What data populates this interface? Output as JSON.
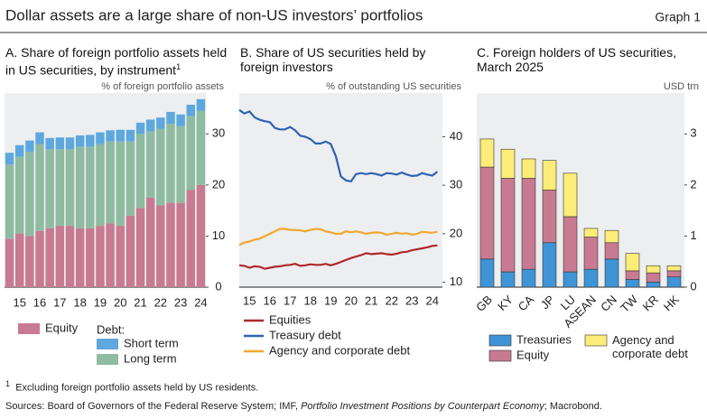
{
  "title": "Dollar assets are a large share of non-US investors’ portfolios",
  "graph_label": "Graph 1",
  "chart_data": [
    {
      "type": "bar",
      "stacked": true,
      "title": "A. Share of foreign portfolio assets held in US securities, by instrument",
      "title_note": "1",
      "y_label": "% of foreign portfolio assets",
      "categories": [
        null,
        "15",
        null,
        "16",
        null,
        "17",
        null,
        "18",
        null,
        "19",
        null,
        "20",
        null,
        "21",
        null,
        "22",
        null,
        "23",
        null,
        "24"
      ],
      "series": [
        {
          "name": "Equity",
          "color": "#c87a92",
          "values": [
            9.5,
            10.5,
            10,
            11,
            11.5,
            12,
            12,
            11.5,
            11.5,
            12,
            12.5,
            12,
            14,
            15.5,
            17.5,
            16,
            16.5,
            16.5,
            19,
            20
          ]
        },
        {
          "name": "Short term",
          "color": "#5ea8de",
          "values": [
            2.3,
            2.3,
            2.2,
            2.3,
            2.2,
            2.3,
            2.3,
            2.2,
            2.3,
            2.3,
            2.2,
            2.3,
            2.3,
            2.2,
            2.3,
            2.2,
            2.3,
            2.3,
            2.2,
            2.3
          ]
        },
        {
          "name": "Long term",
          "color": "#8fbba1",
          "values": [
            14.5,
            15,
            16.5,
            17,
            15.5,
            15,
            15,
            16,
            16,
            16,
            16,
            16.5,
            14.5,
            14.5,
            13,
            15,
            15.5,
            15,
            14.5,
            14.5
          ]
        }
      ],
      "legend_group": "Debt:",
      "ylim": [
        0,
        38
      ],
      "yticks": [
        0,
        10,
        20,
        30
      ]
    },
    {
      "type": "line",
      "title": "B. Share of US securities held by foreign investors",
      "y_label": "% of outstanding US securities",
      "x": [
        15,
        15.25,
        15.5,
        15.75,
        16,
        16.25,
        16.5,
        16.75,
        17,
        17.25,
        17.5,
        17.75,
        18,
        18.25,
        18.5,
        18.75,
        19,
        19.25,
        19.5,
        19.75,
        20,
        20.25,
        20.5,
        20.75,
        21,
        21.25,
        21.5,
        21.75,
        22,
        22.25,
        22.5,
        22.75,
        23,
        23.25,
        23.5,
        23.75,
        24,
        24.25,
        24.5,
        24.75
      ],
      "series": [
        {
          "name": "Equities",
          "color": "#b0282c",
          "values": [
            13.5,
            13.4,
            13,
            13.3,
            13.2,
            12.8,
            13,
            13.2,
            13.3,
            13.5,
            13.6,
            13.8,
            13.4,
            13.5,
            13.7,
            13.6,
            13.6,
            13.8,
            13.5,
            13.8,
            14.2,
            14.6,
            15,
            15.3,
            15.6,
            16,
            15.8,
            15.9,
            16,
            15.8,
            15.7,
            15.9,
            16.2,
            16.3,
            16.6,
            16.8,
            17,
            17.2,
            17.5,
            17.6
          ]
        },
        {
          "name": "Treasury debt",
          "color": "#2e64b2",
          "values": [
            45.5,
            44.8,
            45.2,
            44,
            43.5,
            43.2,
            43,
            41.8,
            41.5,
            41.5,
            42,
            41.3,
            40.2,
            40,
            39.5,
            38.6,
            38.6,
            39,
            38.5,
            36,
            31.8,
            31,
            30.8,
            32.3,
            32.5,
            32.3,
            32.5,
            32.3,
            32,
            32.5,
            32.4,
            32.2,
            32.6,
            32.2,
            31.9,
            32,
            32.5,
            32.2,
            32,
            32.8
          ]
        },
        {
          "name": "Agency and corporate debt",
          "color": "#f0a82e",
          "values": [
            17.7,
            18.2,
            18.4,
            18.8,
            19,
            19.5,
            20,
            20.5,
            21,
            21,
            20.8,
            20.8,
            20.7,
            20.5,
            20.8,
            21,
            20.9,
            20.5,
            20.3,
            20,
            20,
            20.5,
            20.3,
            20.5,
            20.3,
            20,
            20.2,
            20.3,
            20.2,
            19.8,
            20,
            20.2,
            20,
            20.1,
            19.8,
            20,
            20.4,
            20.3,
            20.2,
            20.4
          ]
        }
      ],
      "xlim": [
        15,
        25
      ],
      "xticks": [
        {
          "value": 15.5,
          "label": "15"
        },
        {
          "value": 16.5,
          "label": "16"
        },
        {
          "value": 17.5,
          "label": "17"
        },
        {
          "value": 18.5,
          "label": "18"
        },
        {
          "value": 19.5,
          "label": "19"
        },
        {
          "value": 20.5,
          "label": "20"
        },
        {
          "value": 21.5,
          "label": "21"
        },
        {
          "value": 22.5,
          "label": "22"
        },
        {
          "value": 23.5,
          "label": "23"
        },
        {
          "value": 24.5,
          "label": "24"
        }
      ],
      "ylim": [
        9,
        49
      ],
      "yticks": [
        10,
        20,
        30,
        40
      ]
    },
    {
      "type": "bar",
      "stacked": true,
      "title": "C. Foreign holders of US securities, March 2025",
      "y_label": "USD trn",
      "categories": [
        "GB",
        "KY",
        "CA",
        "JP",
        "LU",
        "ASEAN",
        "CN",
        "TW",
        "KR",
        "HK"
      ],
      "series": [
        {
          "name": "Treasuries",
          "color": "#3f94d5",
          "values": [
            0.55,
            0.3,
            0.35,
            0.87,
            0.3,
            0.35,
            0.55,
            0.15,
            0.1,
            0.2
          ]
        },
        {
          "name": "Equity",
          "color": "#c87a92",
          "values": [
            1.8,
            1.83,
            1.78,
            1.03,
            1.08,
            0.63,
            0.32,
            0.17,
            0.18,
            0.12
          ]
        },
        {
          "name": "Agency and corporate debt",
          "color": "#fcec78",
          "values": [
            0.55,
            0.57,
            0.38,
            0.58,
            0.85,
            0.17,
            0.24,
            0.34,
            0.14,
            0.1
          ]
        }
      ],
      "ylim": [
        0,
        3.8
      ],
      "yticks": [
        0,
        1,
        2,
        3
      ]
    }
  ],
  "footnote": {
    "marker": "1",
    "text": "Excluding foreign portfolio assets held by US residents."
  },
  "sources": {
    "prefix": "Sources: Board of Governors of the Federal Reserve System; IMF, ",
    "italic": "Portfolio Investment Positions by Counterpart Economy",
    "suffix": "; Macrobond."
  }
}
